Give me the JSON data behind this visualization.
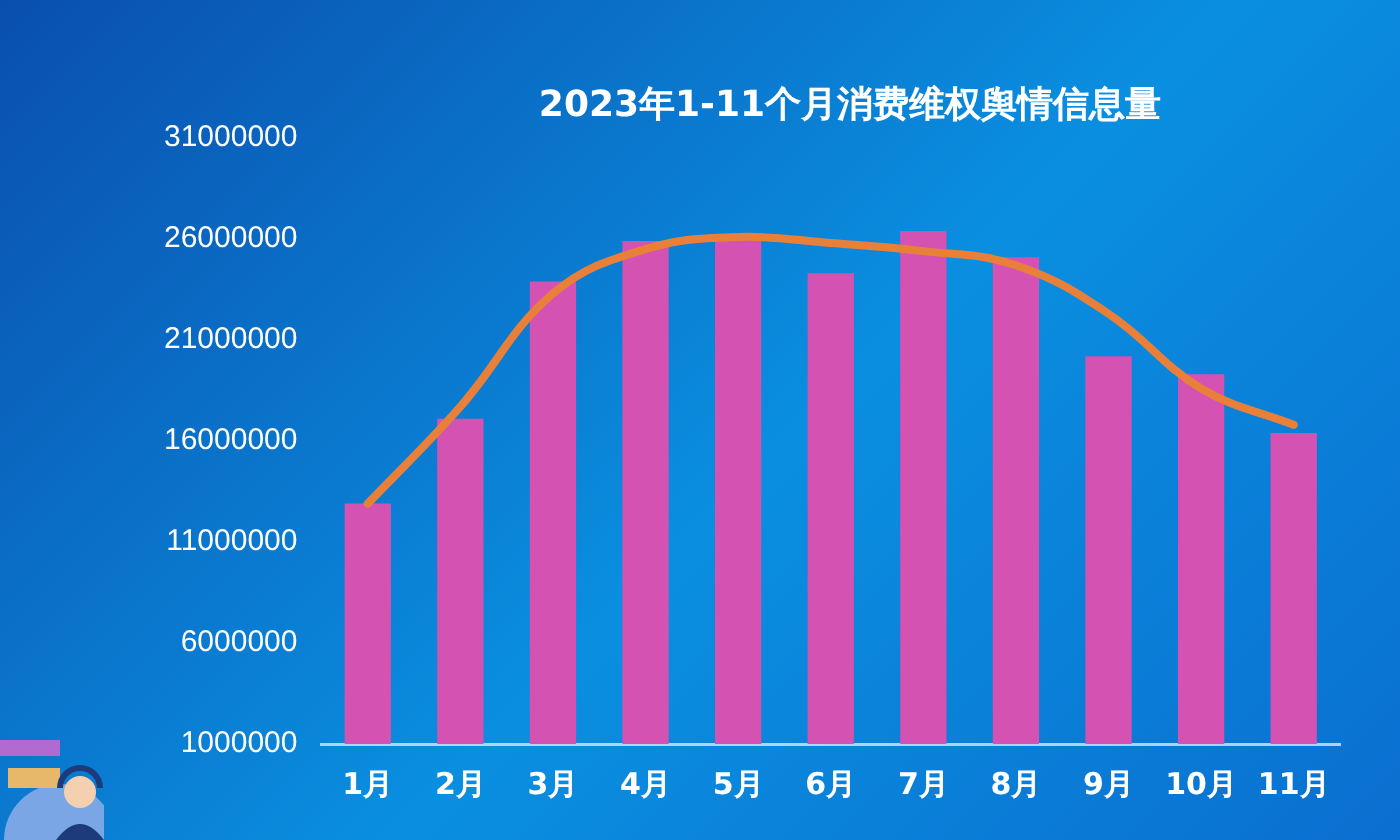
{
  "chart_data": {
    "type": "bar",
    "title": "2023年1-11个月消费维权舆情信息量",
    "categories": [
      "1月",
      "2月",
      "3月",
      "4月",
      "5月",
      "6月",
      "7月",
      "8月",
      "9月",
      "10月",
      "11月"
    ],
    "series": [
      {
        "color": "#d452b2",
        "values": [
          12900000,
          17100000,
          23900000,
          25900000,
          26200000,
          24300000,
          26400000,
          25100000,
          20200000,
          19300000,
          16400000
        ]
      },
      {
        "type": "line",
        "color": "#e8803a",
        "values": [
          12900000,
          17700000,
          23300000,
          25500000,
          26100000,
          25800000,
          25400000,
          24700000,
          22300000,
          18600000,
          16800000
        ]
      }
    ],
    "ylim": [
      1000000,
      31000000
    ],
    "yticks": [
      1000000,
      6000000,
      11000000,
      16000000,
      21000000,
      26000000,
      31000000
    ],
    "grid": false,
    "legend": false,
    "marker": "none",
    "line_style": "solid"
  }
}
